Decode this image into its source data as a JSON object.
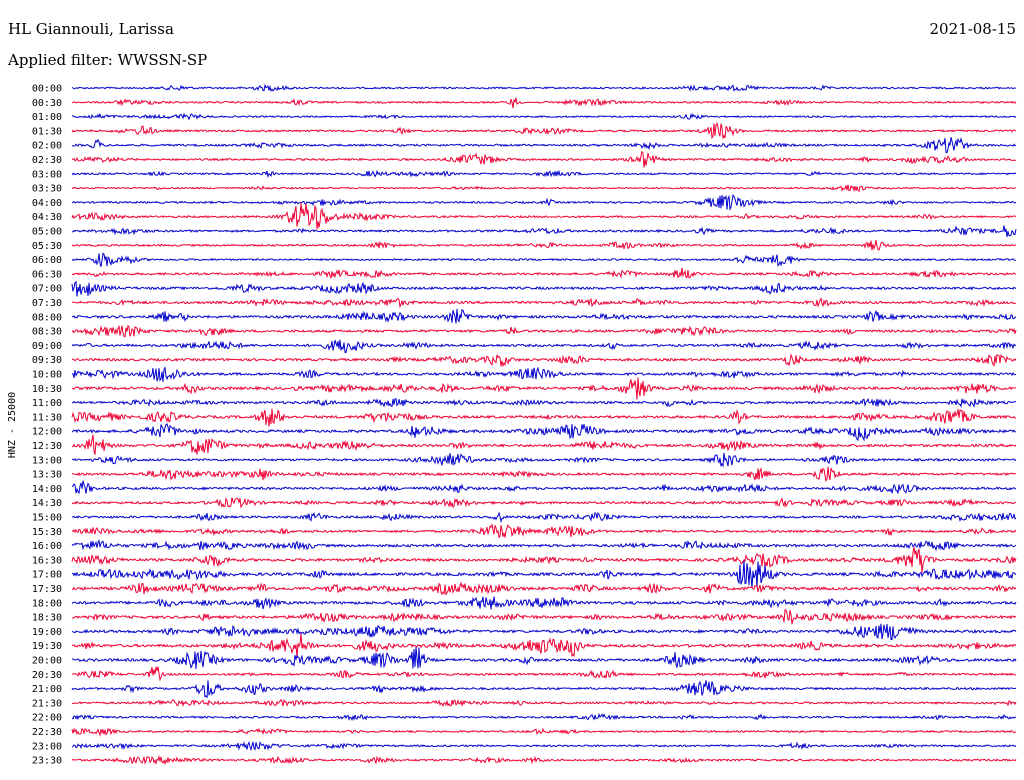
{
  "header": {
    "title": "HL Giannouli, Larissa",
    "date": "2021-08-15",
    "filter": "Applied filter: WWSSN-SP"
  },
  "colors": {
    "line_a": "#0000cc",
    "line_b": "#ee0033"
  },
  "chart_data": {
    "type": "line",
    "title": "HL Giannouli, Larissa",
    "ylabel": "HNZ - 25000",
    "xlabel": "",
    "tick_labels": [
      "00:00",
      "00:30",
      "01:00",
      "01:30",
      "02:00",
      "02:30",
      "03:00",
      "03:30",
      "04:00",
      "04:30",
      "05:00",
      "05:30",
      "06:00",
      "06:30",
      "07:00",
      "07:30",
      "08:00",
      "08:30",
      "09:00",
      "09:30",
      "10:00",
      "10:30",
      "11:00",
      "11:30",
      "12:00",
      "12:30",
      "13:00",
      "13:30",
      "14:00",
      "14:30",
      "15:00",
      "15:30",
      "16:00",
      "16:30",
      "17:00",
      "17:30",
      "18:00",
      "18:30",
      "19:00",
      "19:30",
      "20:00",
      "20:30",
      "21:00",
      "21:30",
      "22:00",
      "22:30",
      "23:00",
      "23:30"
    ],
    "trace_activity": [
      0.2,
      0.25,
      0.15,
      0.35,
      0.4,
      0.35,
      0.25,
      0.15,
      0.3,
      0.35,
      0.45,
      0.3,
      0.25,
      0.45,
      0.6,
      0.65,
      0.7,
      0.6,
      0.55,
      0.6,
      0.65,
      0.75,
      0.6,
      0.7,
      0.75,
      0.7,
      0.5,
      0.55,
      0.6,
      0.55,
      0.5,
      0.5,
      0.7,
      0.75,
      0.85,
      0.85,
      0.8,
      0.75,
      0.75,
      0.8,
      0.8,
      0.45,
      0.45,
      0.4,
      0.3,
      0.25,
      0.3,
      0.35
    ],
    "grid": false,
    "legend": "none"
  }
}
